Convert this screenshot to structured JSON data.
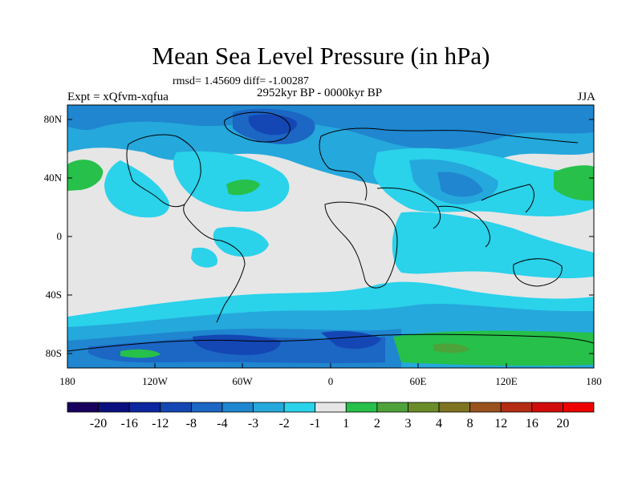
{
  "title": "Mean Sea Level Pressure (in hPa)",
  "stats_line": "rmsd= 1.45609  diff= -1.00287",
  "subtitle": "2952kyr BP - 0000kyr BP",
  "experiment_label": "Expt = xQfvm-xqfua",
  "season_label": "JJA",
  "lat_labels": [
    "80N",
    "40N",
    "0",
    "40S",
    "80S"
  ],
  "lon_labels": [
    "180",
    "120W",
    "60W",
    "0",
    "60E",
    "120E",
    "180"
  ],
  "colorbar": {
    "labels": [
      "-20",
      "-16",
      "-12",
      "-8",
      "-4",
      "-3",
      "-2",
      "-1",
      "1",
      "2",
      "3",
      "4",
      "8",
      "12",
      "16",
      "20"
    ],
    "colors": [
      "#1a005e",
      "#0a1080",
      "#0c26a0",
      "#1446b4",
      "#1c66c4",
      "#1f86cf",
      "#25a8dc",
      "#2ad2ea",
      "#e6e6e6",
      "#26c04a",
      "#4ea23a",
      "#6a8c28",
      "#7e7422",
      "#9a521c",
      "#b42c14",
      "#d20c0a",
      "#ee0000"
    ]
  },
  "colors": {
    "neutral": "#e6e6e6",
    "cyan": "#2ad2ea",
    "light_blue": "#25a8dc",
    "mid_blue": "#1f86cf",
    "blue": "#1c66c4",
    "dark_blue": "#1446b4",
    "green": "#26c04a",
    "olive": "#4ea23a"
  }
}
